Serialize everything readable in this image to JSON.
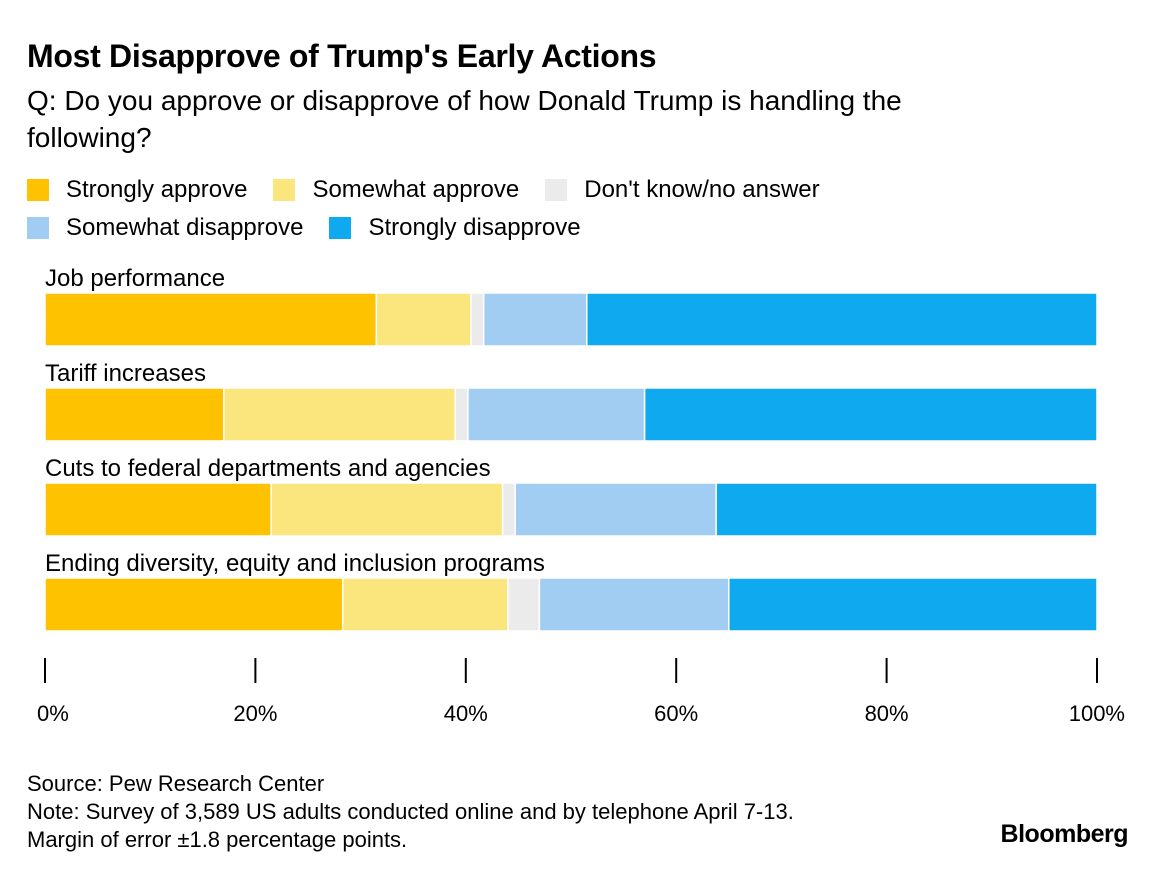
{
  "header": {
    "title": "Most Disapprove of Trump's Early Actions",
    "subtitle": "Q: Do you approve or disapprove of how Donald Trump is handling the following?"
  },
  "legend": [
    {
      "label": "Strongly approve",
      "color": "#FFC200"
    },
    {
      "label": "Somewhat approve",
      "color": "#FBE57D"
    },
    {
      "label": "Don't know/no answer",
      "color": "#EBEBEB"
    },
    {
      "label": "Somewhat disapprove",
      "color": "#A2CDF2"
    },
    {
      "label": "Strongly disapprove",
      "color": "#0FA9EF"
    }
  ],
  "chart_data": {
    "type": "bar",
    "orientation": "horizontal",
    "stacked": true,
    "categories": [
      "Job performance",
      "Tariff increases",
      "Cuts to federal departments and agencies",
      "Ending diversity, equity and inclusion programs"
    ],
    "series": [
      {
        "name": "Strongly approve",
        "color": "#FFC200",
        "values": [
          31.5,
          17,
          21.5,
          28.3
        ]
      },
      {
        "name": "Somewhat approve",
        "color": "#FBE57D",
        "values": [
          9,
          22,
          22,
          15.7
        ]
      },
      {
        "name": "Don't know/no answer",
        "color": "#EBEBEB",
        "values": [
          1.2,
          1.2,
          1.2,
          3
        ]
      },
      {
        "name": "Somewhat disapprove",
        "color": "#A2CDF2",
        "values": [
          9.8,
          16.8,
          19.1,
          18
        ]
      },
      {
        "name": "Strongly disapprove",
        "color": "#0FA9EF",
        "values": [
          48.5,
          43,
          36.2,
          35
        ]
      }
    ],
    "xlim": [
      0,
      100
    ],
    "ticks": [
      0,
      20,
      40,
      60,
      80,
      100
    ],
    "tick_labels": [
      "0%",
      "20%",
      "40%",
      "60%",
      "80%",
      "100%"
    ],
    "grid": false,
    "legend_position": "top"
  },
  "footer": {
    "source": "Source: Pew Research Center",
    "note_line1": "Note: Survey of 3,589 US adults conducted online and by telephone April 7-13.",
    "note_line2": "Margin of error ±1.8 percentage points.",
    "brand": "Bloomberg"
  }
}
